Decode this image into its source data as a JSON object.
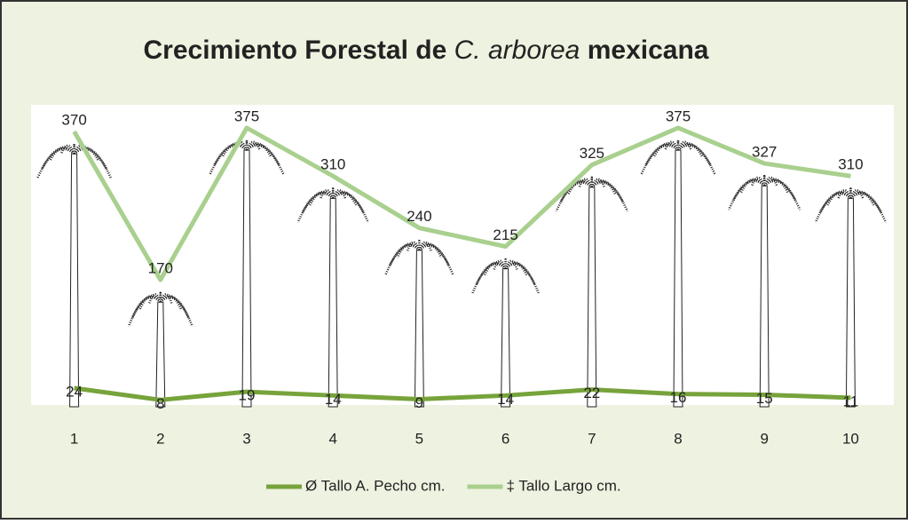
{
  "chart_data": {
    "type": "line",
    "title_parts": [
      "Crecimiento Forestal de",
      "C. arborea",
      "mexicana"
    ],
    "categories": [
      "1",
      "2",
      "3",
      "4",
      "5",
      "6",
      "7",
      "8",
      "9",
      "10"
    ],
    "series": [
      {
        "name": "Ø Tallo A. Pecho cm.",
        "color": "#77a33b",
        "values": [
          24,
          8,
          19,
          14,
          9,
          14,
          22,
          16,
          15,
          11
        ]
      },
      {
        "name": "‡ Tallo Largo cm.",
        "color": "#a9d08e",
        "values": [
          370,
          170,
          375,
          310,
          240,
          215,
          325,
          375,
          327,
          310
        ]
      }
    ]
  }
}
